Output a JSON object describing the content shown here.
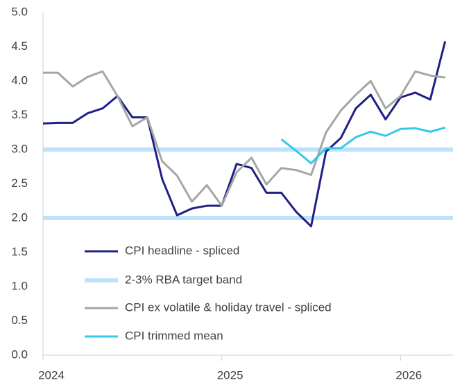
{
  "chart_data": {
    "type": "line",
    "x": [
      0,
      1,
      2,
      3,
      4,
      5,
      6,
      7,
      8,
      9,
      10,
      11,
      12,
      13,
      14,
      15,
      16,
      17,
      18,
      19,
      20,
      21,
      22,
      23,
      24,
      25,
      26,
      27
    ],
    "xlim": [
      0,
      27.2
    ],
    "xticks": [
      {
        "value": 0,
        "label": "2024"
      },
      {
        "value": 12,
        "label": "2025"
      },
      {
        "value": 24,
        "label": "2026"
      }
    ],
    "ylim": [
      0,
      5
    ],
    "yticks": [
      {
        "value": 0,
        "label": "0.0"
      },
      {
        "value": 0.5,
        "label": "0.5"
      },
      {
        "value": 1,
        "label": "1.0"
      },
      {
        "value": 1.5,
        "label": "1.5"
      },
      {
        "value": 2,
        "label": "2.0"
      },
      {
        "value": 2.5,
        "label": "2.5"
      },
      {
        "value": 3,
        "label": "3.0"
      },
      {
        "value": 3.5,
        "label": "3.5"
      },
      {
        "value": 4,
        "label": "4.0"
      },
      {
        "value": 4.5,
        "label": "4.5"
      },
      {
        "value": 5,
        "label": "5.0"
      }
    ],
    "band": {
      "name": "2-3% RBA target band",
      "color": "#bde3fa",
      "values": [
        2,
        3
      ]
    },
    "series": [
      {
        "name": "CPI headline - spliced",
        "color": "#1f1f86",
        "values": [
          3.38,
          3.39,
          3.39,
          3.53,
          3.6,
          3.78,
          3.47,
          3.47,
          2.57,
          2.04,
          2.14,
          2.18,
          2.18,
          2.79,
          2.73,
          2.37,
          2.37,
          2.09,
          1.88,
          2.97,
          3.17,
          3.6,
          3.8,
          3.44,
          3.76,
          3.83,
          3.73,
          4.58
        ]
      },
      {
        "name": "CPI ex volatile & holiday travel - spliced",
        "color": "#a6a6a6",
        "values": [
          4.12,
          4.12,
          3.92,
          4.06,
          4.14,
          3.78,
          3.34,
          3.47,
          2.83,
          2.62,
          2.24,
          2.48,
          2.18,
          2.67,
          2.88,
          2.49,
          2.73,
          2.7,
          2.63,
          3.25,
          3.57,
          3.8,
          4.0,
          3.6,
          3.78,
          4.14,
          4.08,
          4.05
        ]
      },
      {
        "name": "CPI trimmed mean",
        "color": "#34c8ea",
        "values": [
          null,
          null,
          null,
          null,
          null,
          null,
          null,
          null,
          null,
          null,
          null,
          null,
          null,
          null,
          null,
          null,
          3.15,
          2.98,
          2.8,
          3.02,
          3.02,
          3.18,
          3.26,
          3.2,
          3.3,
          3.31,
          3.26,
          3.32
        ]
      }
    ]
  }
}
